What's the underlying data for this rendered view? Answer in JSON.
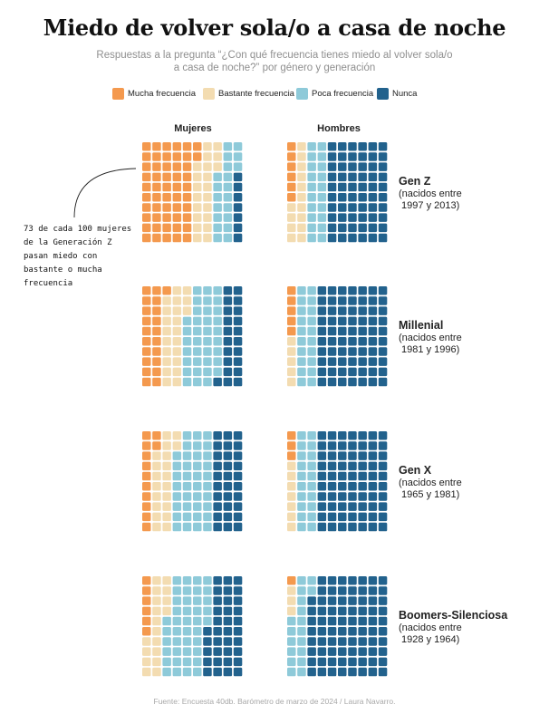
{
  "title": "Miedo de volver sola/o a casa de noche",
  "subtitle_line1": "Respuestas a la pregunta “¿Con qué frecuencia tienes miedo al volver sola/o",
  "subtitle_line2": "a casa de noche?” por género y generación",
  "legend": [
    {
      "label": "Mucha frecuencia",
      "color": "#f4994e"
    },
    {
      "label": "Bastante frecuencia",
      "color": "#f3dcb1"
    },
    {
      "label": "Poca frecuencia",
      "color": "#8ecad9"
    },
    {
      "label": "Nunca",
      "color": "#22628d"
    }
  ],
  "columns": [
    "Mujeres",
    "Hombres"
  ],
  "generations": [
    {
      "name": "Gen Z",
      "desc_line1": "(nacidos entre",
      "desc_line2": " 1997 y 2013)"
    },
    {
      "name": "Millenial",
      "desc_line1": "(nacidos entre",
      "desc_line2": " 1981 y 1996)"
    },
    {
      "name": "Gen X",
      "desc_line1": "(nacidos entre",
      "desc_line2": " 1965 y 1981)"
    },
    {
      "name": "Boomers-Silenciosa",
      "desc_line1": "(nacidos entre",
      "desc_line2": " 1928 y 1964)"
    }
  ],
  "annotation": "73 de cada 100 mujeres de la Generación Z pasan miedo con bastante o mucha frecuencia",
  "source": "Fuente: Encuesta 40db. Barómetro de marzo de 2024 / Laura Navarro.",
  "chart_data": {
    "type": "waffle",
    "categories": [
      "Mucha frecuencia",
      "Bastante frecuencia",
      "Poca frecuencia",
      "Nunca"
    ],
    "units": "personas de cada 100",
    "panels": [
      {
        "generation": "Gen Z",
        "gender": "Mujeres",
        "values": [
          52,
          21,
          20,
          7
        ]
      },
      {
        "generation": "Gen Z",
        "gender": "Hombres",
        "values": [
          6,
          14,
          20,
          60
        ]
      },
      {
        "generation": "Millenial",
        "gender": "Mujeres",
        "values": [
          21,
          22,
          36,
          21
        ]
      },
      {
        "generation": "Millenial",
        "gender": "Hombres",
        "values": [
          5,
          5,
          20,
          70
        ]
      },
      {
        "generation": "Gen X",
        "gender": "Mujeres",
        "values": [
          12,
          20,
          38,
          30
        ]
      },
      {
        "generation": "Gen X",
        "gender": "Hombres",
        "values": [
          3,
          7,
          20,
          70
        ]
      },
      {
        "generation": "Boomers-Silenciosa",
        "gender": "Mujeres",
        "values": [
          6,
          18,
          41,
          35
        ]
      },
      {
        "generation": "Boomers-Silenciosa",
        "gender": "Hombres",
        "values": [
          1,
          3,
          18,
          78
        ]
      }
    ]
  }
}
